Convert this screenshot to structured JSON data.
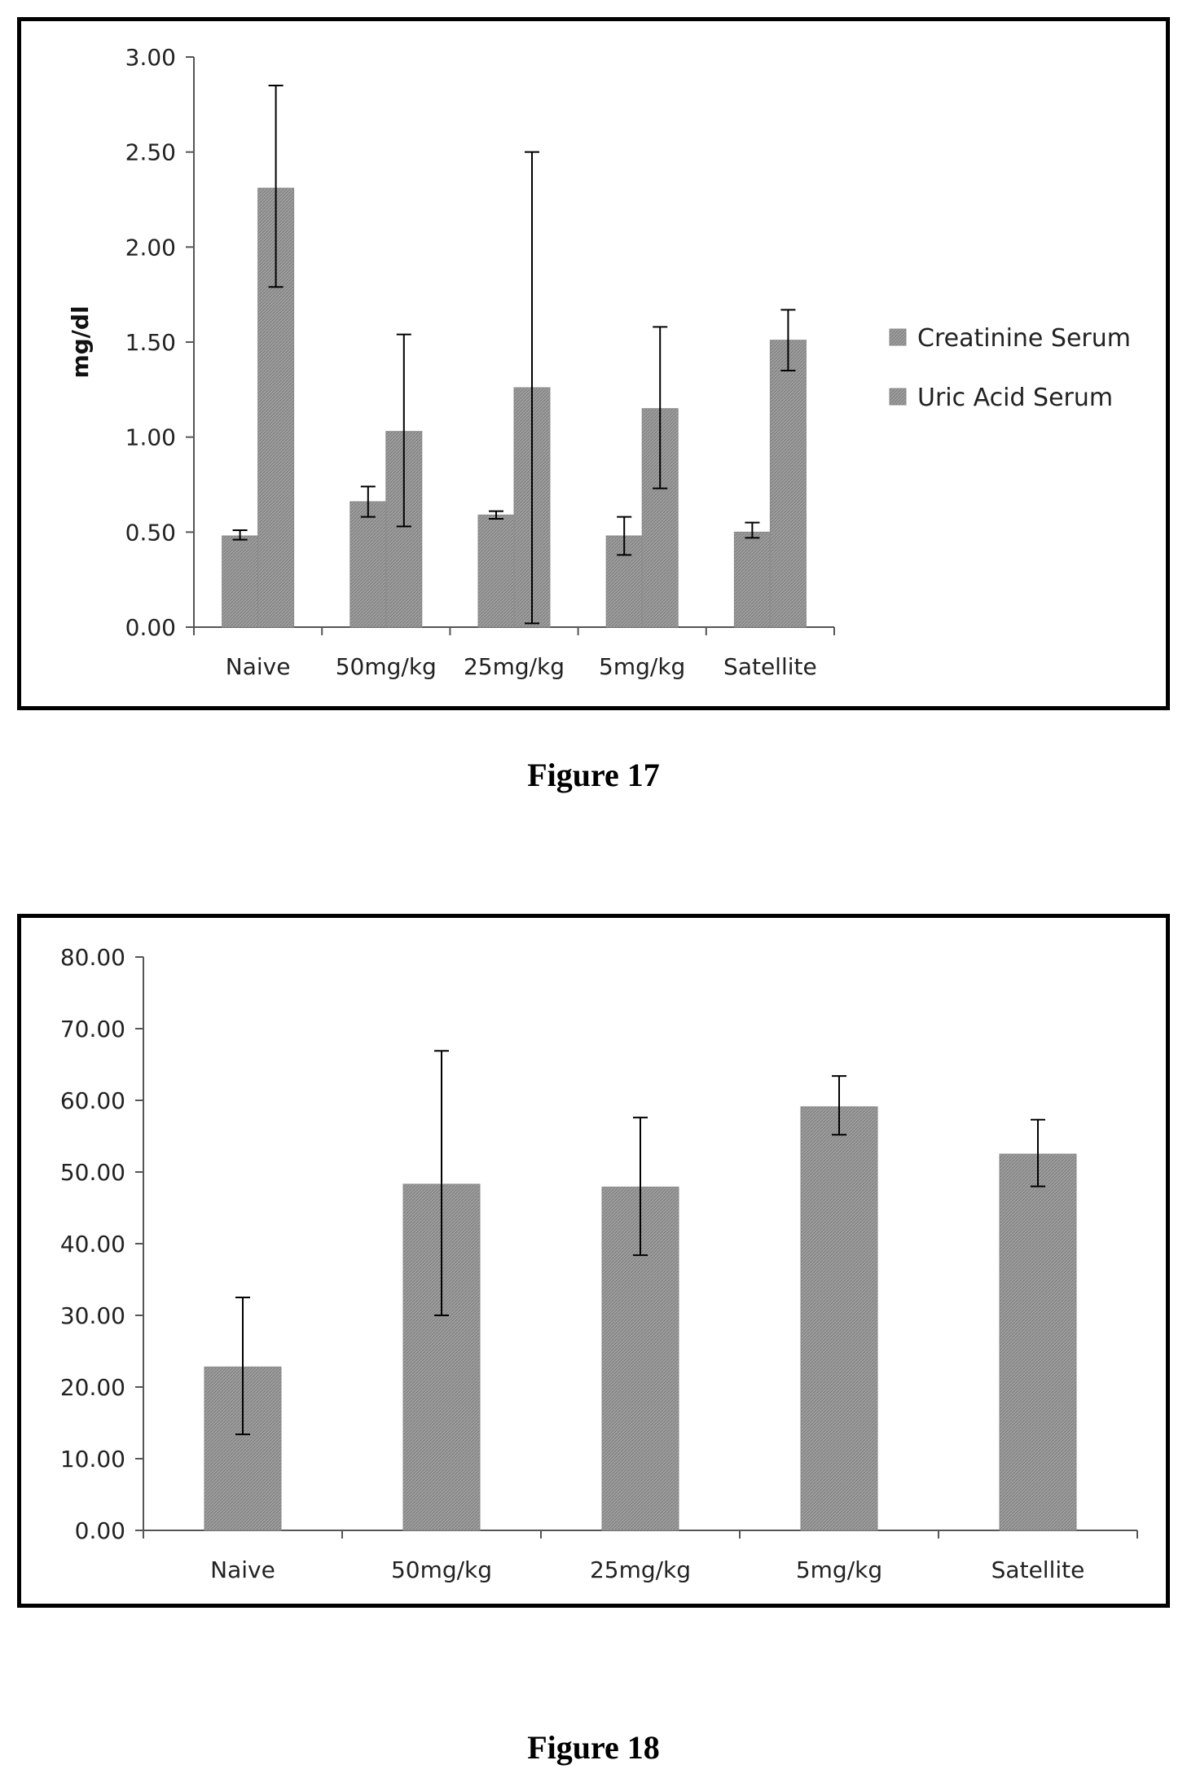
{
  "figures": [
    {
      "caption": "Figure 17",
      "chart_data": {
        "type": "bar",
        "categories": [
          "Naive",
          "50mg/kg",
          "25mg/kg",
          "5mg/kg",
          "Satellite"
        ],
        "ylabel": "mg/dl",
        "ylim": [
          0,
          3
        ],
        "yticks": [
          "0.00",
          "0.50",
          "1.00",
          "1.50",
          "2.00",
          "2.50",
          "3.00"
        ],
        "grid": false,
        "legend": "right",
        "series": [
          {
            "name": "Creatinine Serum",
            "values": [
              0.48,
              0.66,
              0.59,
              0.48,
              0.5
            ],
            "err_low": [
              0.46,
              0.58,
              0.57,
              0.38,
              0.47
            ],
            "err_high": [
              0.51,
              0.74,
              0.61,
              0.58,
              0.55
            ]
          },
          {
            "name": "Uric Acid Serum",
            "values": [
              2.31,
              1.03,
              1.26,
              1.15,
              1.51
            ],
            "err_low": [
              1.79,
              0.53,
              0.02,
              0.73,
              1.35
            ],
            "err_high": [
              2.85,
              1.54,
              2.5,
              1.58,
              1.67
            ]
          }
        ]
      }
    },
    {
      "caption": "Figure 18",
      "chart_data": {
        "type": "bar",
        "categories": [
          "Naive",
          "50mg/kg",
          "25mg/kg",
          "5mg/kg",
          "Satellite"
        ],
        "ylabel": "",
        "ylim": [
          0,
          80
        ],
        "yticks": [
          "0.00",
          "10.00",
          "20.00",
          "30.00",
          "40.00",
          "50.00",
          "60.00",
          "70.00",
          "80.00"
        ],
        "grid": false,
        "legend": "none",
        "series": [
          {
            "values": [
              22.8,
              48.3,
              47.9,
              59.1,
              52.5
            ],
            "err_low": [
              13.4,
              30.0,
              38.4,
              55.2,
              48.0
            ],
            "err_high": [
              32.5,
              66.9,
              57.6,
              63.4,
              57.3
            ]
          }
        ]
      }
    }
  ],
  "colors": {
    "bar_fill": "#9e9e9e",
    "bar_stroke": "#8a8a8a",
    "axis": "#555555",
    "error_bar": "#000000"
  }
}
